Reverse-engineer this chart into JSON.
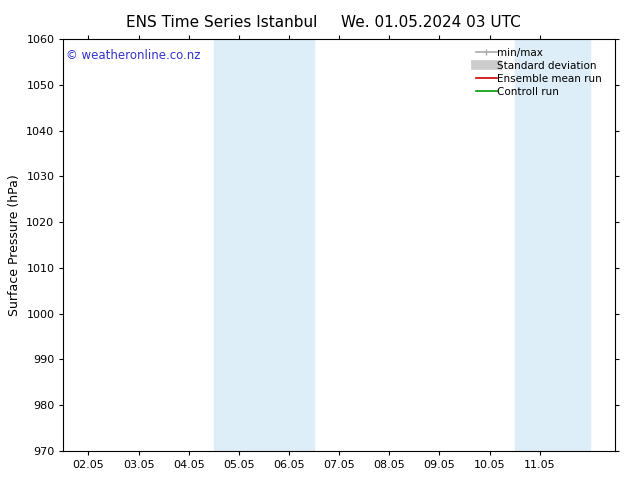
{
  "title_left": "ENS Time Series Istanbul",
  "title_right": "We. 01.05.2024 03 UTC",
  "ylabel": "Surface Pressure (hPa)",
  "ylim": [
    970,
    1060
  ],
  "yticks": [
    970,
    980,
    990,
    1000,
    1010,
    1020,
    1030,
    1040,
    1050,
    1060
  ],
  "xlim_start": -0.5,
  "xlim_end": 10.5,
  "xtick_labels": [
    "02.05",
    "03.05",
    "04.05",
    "05.05",
    "06.05",
    "07.05",
    "08.05",
    "09.05",
    "10.05",
    "11.05"
  ],
  "xtick_positions": [
    0,
    1,
    2,
    3,
    4,
    5,
    6,
    7,
    8,
    9
  ],
  "shaded_bands": [
    {
      "xmin": 2.5,
      "xmax": 4.5,
      "color": "#ddeef8"
    },
    {
      "xmin": 8.5,
      "xmax": 10.0,
      "color": "#ddeef8"
    }
  ],
  "watermark": "© weatheronline.co.nz",
  "watermark_color": "#3333cc",
  "watermark_fontsize": 8.5,
  "legend_items": [
    {
      "label": "min/max",
      "color": "#aaaaaa",
      "lw": 1.2,
      "ls": "-",
      "type": "line_with_ticks"
    },
    {
      "label": "Standard deviation",
      "color": "#cccccc",
      "lw": 7,
      "ls": "-",
      "type": "thick_line"
    },
    {
      "label": "Ensemble mean run",
      "color": "#cc0000",
      "lw": 1.2,
      "ls": "-",
      "type": "line"
    },
    {
      "label": "Controll run",
      "color": "#009900",
      "lw": 1.2,
      "ls": "-",
      "type": "line"
    }
  ],
  "background_color": "#ffffff",
  "plot_bg_color": "#ffffff",
  "title_fontsize": 11,
  "tick_fontsize": 8,
  "ylabel_fontsize": 9,
  "legend_fontsize": 7.5
}
